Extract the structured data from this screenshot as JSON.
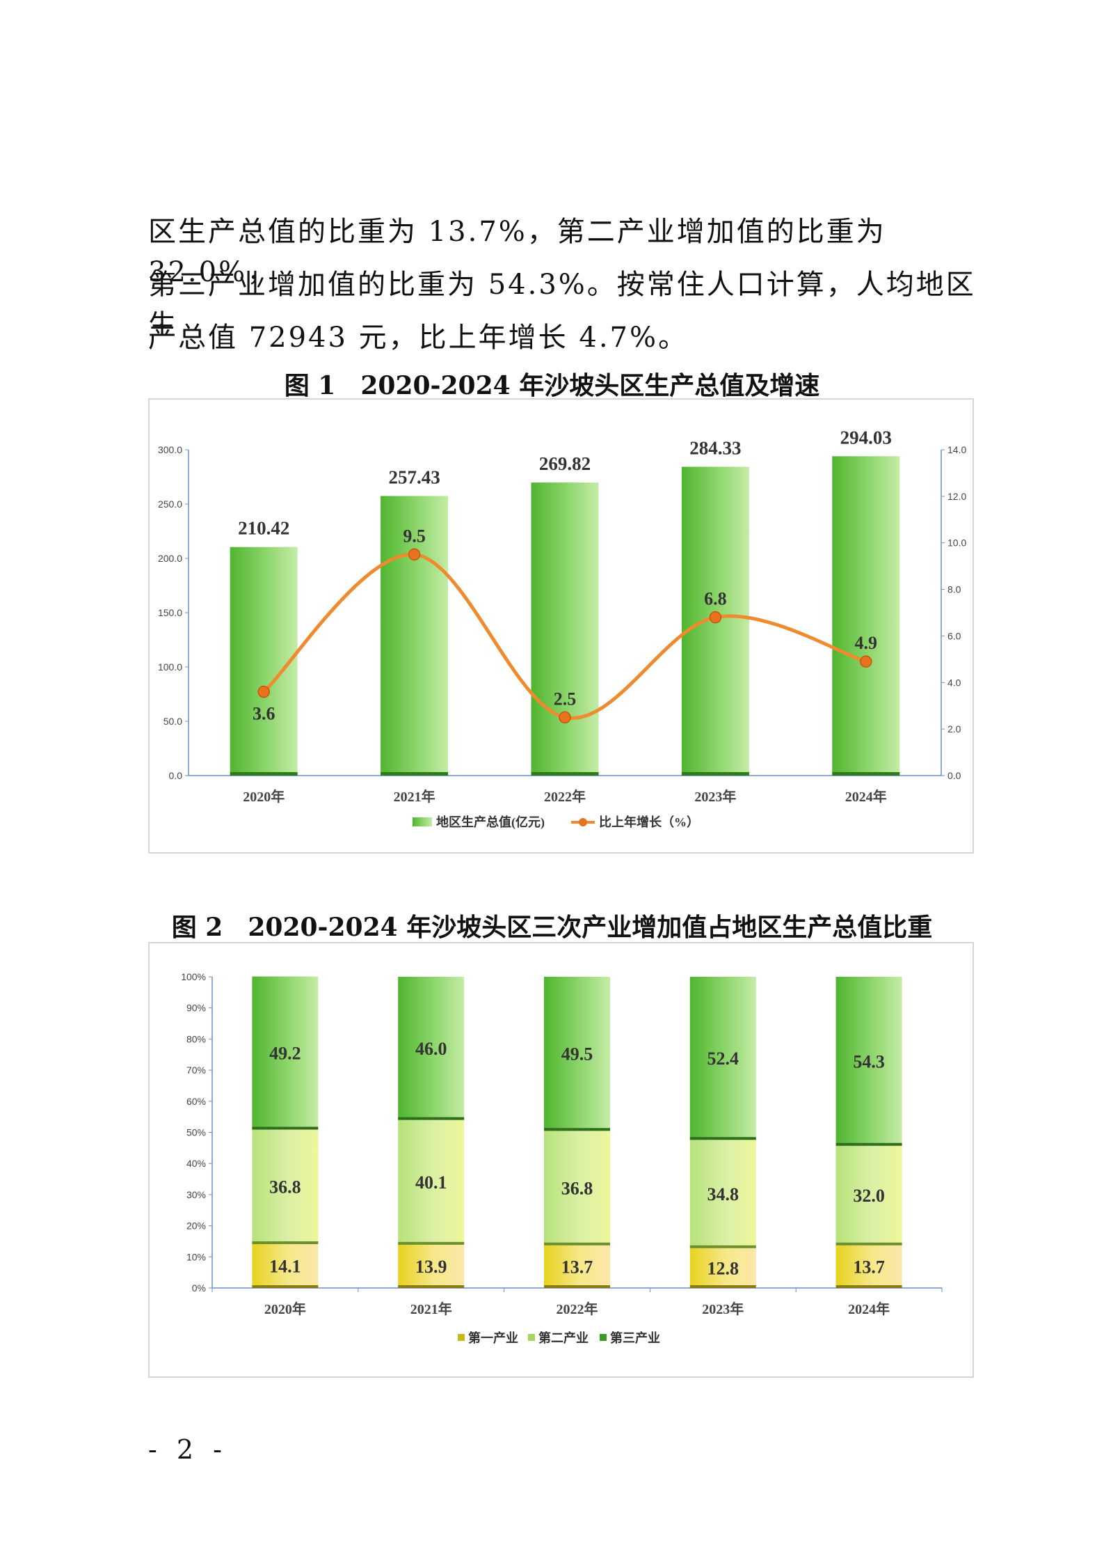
{
  "text": {
    "lines": [
      "区生产总值的比重为 13.7%，第二产业增加值的比重为 32.0%，",
      "第三产业增加值的比重为 54.3%。按常住人口计算，人均地区生",
      "产总值 72943 元，比上年增长 4.7%。"
    ]
  },
  "page_number": "- 2 -",
  "colors": {
    "bar_green": "#6ec94c",
    "bar_green_light": "#b9e79b",
    "line_orange": "#f08a2e",
    "primary_yellow": "#f2dc3b",
    "axis_blue": "#6a8fc4"
  },
  "chart_data": [
    {
      "type": "bar",
      "title": "图 1　2020-2024 年沙坡头区生产总值及增速",
      "categories": [
        "2020年",
        "2021年",
        "2022年",
        "2023年",
        "2024年"
      ],
      "series": [
        {
          "name": "地区生产总值(亿元)",
          "type": "bar",
          "axis": "left",
          "values": [
            210.42,
            257.43,
            269.82,
            284.33,
            294.03
          ],
          "labels": [
            "210.42",
            "257.43",
            "269.82",
            "284.33",
            "294.03"
          ]
        },
        {
          "name": "比上年增长（%）",
          "type": "line",
          "axis": "right",
          "values": [
            3.6,
            9.5,
            2.5,
            6.8,
            4.9
          ],
          "labels": [
            "3.6",
            "9.5",
            "2.5",
            "6.8",
            "4.9"
          ]
        }
      ],
      "ylim": [
        0,
        300
      ],
      "y2lim": [
        0,
        14
      ],
      "y_ticks": [
        "0.0",
        "50.0",
        "100.0",
        "150.0",
        "200.0",
        "250.0",
        "300.0"
      ],
      "y2_ticks": [
        "0.0",
        "2.0",
        "4.0",
        "6.0",
        "8.0",
        "10.0",
        "12.0",
        "14.0"
      ],
      "legend": "bottom",
      "grid": false
    },
    {
      "type": "bar",
      "stacked": true,
      "title": "图 2　2020-2024 年沙坡头区三次产业增加值占地区生产总值比重",
      "categories": [
        "2020年",
        "2021年",
        "2022年",
        "2023年",
        "2024年"
      ],
      "series": [
        {
          "name": "第一产业",
          "values": [
            14.1,
            13.9,
            13.7,
            12.8,
            13.7
          ],
          "labels": [
            "14.1",
            "13.9",
            "13.7",
            "12.8",
            "13.7"
          ]
        },
        {
          "name": "第二产业",
          "values": [
            36.8,
            40.1,
            36.8,
            34.8,
            32.0
          ],
          "labels": [
            "36.8",
            "40.1",
            "36.8",
            "34.8",
            "32.0"
          ]
        },
        {
          "name": "第三产业",
          "values": [
            49.2,
            46.0,
            49.5,
            52.4,
            54.3
          ],
          "labels": [
            "49.2",
            "46.0",
            "49.5",
            "52.4",
            "54.3"
          ]
        }
      ],
      "ylim": [
        0,
        100
      ],
      "y_ticks": [
        "0%",
        "10%",
        "20%",
        "30%",
        "40%",
        "50%",
        "60%",
        "70%",
        "80%",
        "90%",
        "100%"
      ],
      "legend": "bottom",
      "grid": false
    }
  ]
}
